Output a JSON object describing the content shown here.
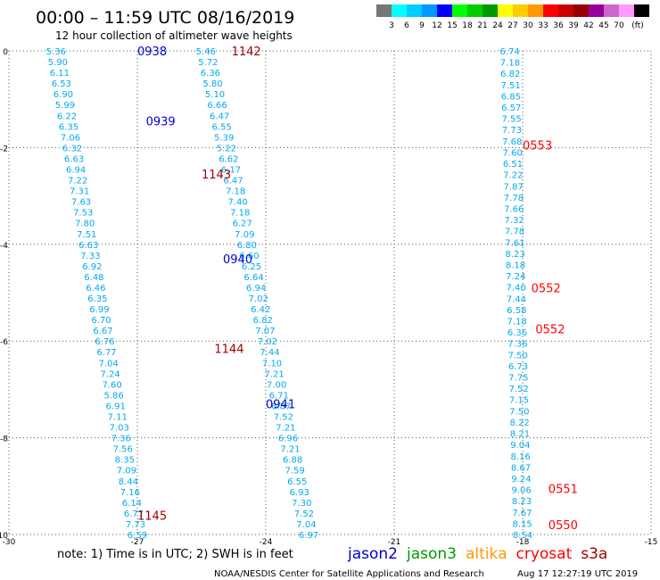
{
  "header": {
    "title": "00:00 – 11:59 UTC 08/16/2019",
    "subtitle": "12 hour collection of altimeter wave heights"
  },
  "legend_scale": {
    "colors": [
      "#777777",
      "#00ffff",
      "#00ccff",
      "#0099ff",
      "#0000ff",
      "#00ff00",
      "#00cc00",
      "#009900",
      "#ffff00",
      "#ffcc00",
      "#ff9900",
      "#ff0000",
      "#cc0000",
      "#990000",
      "#990099",
      "#cc66cc",
      "#ff99ff",
      "#000000"
    ],
    "labels": [
      "3",
      "6",
      "9",
      "12",
      "15",
      "18",
      "21",
      "24",
      "27",
      "30",
      "33",
      "36",
      "39",
      "42",
      "45",
      "70"
    ],
    "unit": "(ft)"
  },
  "satellites": [
    {
      "name": "jason2",
      "color": "#0000cc"
    },
    {
      "name": "jason3",
      "color": "#009900"
    },
    {
      "name": "altika",
      "color": "#ff9900"
    },
    {
      "name": "cryosat",
      "color": "#ff0000"
    },
    {
      "name": "s3a",
      "color": "#990000"
    }
  ],
  "footer": {
    "note": "note:  1) Time is in UTC;  2) SWH is in feet",
    "credit": "NOAA/NESDIS Center for Satellite Applications and Research",
    "timestamp": "Aug 17 12:27:19 UTC 2019"
  },
  "chart_data": {
    "type": "scatter",
    "xlabel": "",
    "ylabel": "",
    "xlim": [
      -30,
      -15
    ],
    "ylim": [
      -10,
      0
    ],
    "xticks": [
      -30,
      -27,
      -24,
      -21,
      -18,
      -15
    ],
    "yticks": [
      0,
      -2,
      -4,
      -6,
      -8,
      -10
    ],
    "grid": true,
    "tracks": [
      {
        "lon0": -28.9,
        "lat0": 0.0,
        "lon1": -27.0,
        "lat1": -10.0,
        "color": "#00aaee",
        "values": [
          "5.36",
          "5.90",
          "6.11",
          "6.53",
          "6.90",
          "5.99",
          "6.22",
          "6.35",
          "7.06",
          "6.32",
          "6.63",
          "6.94",
          "7.22",
          "7.31",
          "7.63",
          "7.53",
          "7.80",
          "7.51",
          "6.63",
          "7.33",
          "6.92",
          "6.48",
          "6.46",
          "6.35",
          "6.99",
          "6.70",
          "6.67",
          "6.76",
          "6.77",
          "7.04",
          "7.24",
          "7.60",
          "5.86",
          "6.91",
          "7.11",
          "7.03",
          "7.36",
          "7.56",
          "8.35",
          "7.09",
          "8.44",
          "7.16",
          "6.14",
          "6.77",
          "7.73",
          "6.59"
        ]
      },
      {
        "lon0": -25.4,
        "lat0": 0.0,
        "lon1": -23.0,
        "lat1": -10.0,
        "color": "#00aaee",
        "values": [
          "5.46",
          "5.72",
          "6.36",
          "5.80",
          "5.10",
          "6.66",
          "6.47",
          "6.55",
          "5.39",
          "5.22",
          "6.62",
          "6.17",
          "6.47",
          "7.18",
          "7.40",
          "7.18",
          "6.27",
          "7.09",
          "6.80",
          "6.60",
          "6.25",
          "6.64",
          "6.94",
          "7.02",
          "6.42",
          "6.82",
          "7.07",
          "7.02",
          "7.44",
          "7.10",
          "7.21",
          "7.00",
          "6.71",
          "6.87",
          "7.52",
          "7.21",
          "6.96",
          "7.21",
          "6.88",
          "7.59",
          "6.55",
          "6.93",
          "7.30",
          "7.52",
          "7.04",
          "6.97"
        ]
      },
      {
        "lon0": -18.3,
        "lat0": 0.0,
        "lon1": -18.0,
        "lat1": -10.0,
        "color": "#00aaee",
        "values": [
          "6.74",
          "7.18",
          "6.82",
          "7.51",
          "6.85",
          "6.57",
          "7.55",
          "7.73",
          "7.68",
          "7.60",
          "6.51",
          "7.22",
          "7.87",
          "7.78",
          "7.66",
          "7.32",
          "7.78",
          "7.61",
          "8.23",
          "8.18",
          "7.24",
          "7.40",
          "7.44",
          "6.58",
          "7.18",
          "6.36",
          "7.36",
          "7.50",
          "6.73",
          "7.75",
          "7.52",
          "7.15",
          "7.50",
          "8.22",
          "8.21",
          "9.04",
          "8.16",
          "8.67",
          "9.24",
          "9.06",
          "8.23",
          "7.67",
          "8.15",
          "8.54"
        ]
      }
    ],
    "time_labels": [
      {
        "lon": -27.0,
        "lat": 0.0,
        "text": "0938",
        "color": "#0000cc"
      },
      {
        "lon": -24.8,
        "lat": 0.0,
        "text": "1142",
        "color": "#990000"
      },
      {
        "lon": -26.8,
        "lat": -1.45,
        "text": "0939",
        "color": "#0000cc"
      },
      {
        "lon": -18.0,
        "lat": -1.95,
        "text": "0553",
        "color": "#ff0000"
      },
      {
        "lon": -25.5,
        "lat": -2.55,
        "text": "1143",
        "color": "#990000"
      },
      {
        "lon": -25.0,
        "lat": -4.3,
        "text": "0940",
        "color": "#0000cc"
      },
      {
        "lon": -17.8,
        "lat": -4.9,
        "text": "0552",
        "color": "#ff0000"
      },
      {
        "lon": -17.7,
        "lat": -5.75,
        "text": "0552",
        "color": "#ff0000"
      },
      {
        "lon": -25.2,
        "lat": -6.15,
        "text": "1144",
        "color": "#990000"
      },
      {
        "lon": -24.0,
        "lat": -7.3,
        "text": "0941",
        "color": "#0000cc"
      },
      {
        "lon": -17.4,
        "lat": -9.05,
        "text": "0551",
        "color": "#ff0000"
      },
      {
        "lon": -17.4,
        "lat": -9.8,
        "text": "0550",
        "color": "#ff0000"
      },
      {
        "lon": -27.0,
        "lat": -9.6,
        "text": "1145",
        "color": "#990000"
      }
    ]
  }
}
